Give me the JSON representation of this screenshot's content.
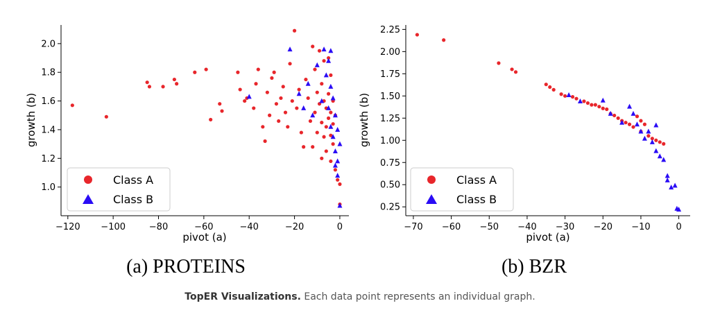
{
  "caption": {
    "bold": "TopER Visualizations.",
    "rest": " Each data point represents an individual graph."
  },
  "colors": {
    "class_a": "#e8262b",
    "class_b": "#2a0cf5"
  },
  "chart_data": [
    {
      "type": "scatter",
      "subcaption": "(a) PROTEINS",
      "xlabel": "pivot (a)",
      "ylabel": "growth (b)",
      "xlim": [
        -123,
        4
      ],
      "ylim": [
        0.8,
        2.13
      ],
      "xticks": [
        -120,
        -100,
        -80,
        -60,
        -40,
        -20,
        0
      ],
      "yticks": [
        1.0,
        1.2,
        1.4,
        1.6,
        1.8,
        2.0
      ],
      "ytick_labels": [
        "1.0",
        "1.2",
        "1.4",
        "1.6",
        "1.8",
        "2.0"
      ],
      "legend": {
        "position": "lower-left",
        "entries": [
          "Class A",
          "Class B"
        ]
      },
      "series": [
        {
          "name": "Class A",
          "marker": "circle",
          "points": [
            [
              -118,
              1.57
            ],
            [
              -103,
              1.49
            ],
            [
              -85,
              1.73
            ],
            [
              -84,
              1.7
            ],
            [
              -78,
              1.7
            ],
            [
              -73,
              1.75
            ],
            [
              -72,
              1.72
            ],
            [
              -64,
              1.8
            ],
            [
              -59,
              1.82
            ],
            [
              -57,
              1.47
            ],
            [
              -53,
              1.58
            ],
            [
              -52,
              1.53
            ],
            [
              -45,
              1.8
            ],
            [
              -44,
              1.68
            ],
            [
              -42,
              1.6
            ],
            [
              -41,
              1.62
            ],
            [
              -38,
              1.55
            ],
            [
              -37,
              1.72
            ],
            [
              -36,
              1.82
            ],
            [
              -34,
              1.42
            ],
            [
              -33,
              1.32
            ],
            [
              -32,
              1.66
            ],
            [
              -31,
              1.5
            ],
            [
              -30,
              1.76
            ],
            [
              -29,
              1.8
            ],
            [
              -28,
              1.58
            ],
            [
              -27,
              1.46
            ],
            [
              -26,
              1.62
            ],
            [
              -25,
              1.7
            ],
            [
              -24,
              1.52
            ],
            [
              -23,
              1.42
            ],
            [
              -22,
              1.86
            ],
            [
              -21,
              1.6
            ],
            [
              -20,
              2.09
            ],
            [
              -19,
              1.55
            ],
            [
              -18,
              1.68
            ],
            [
              -17,
              1.38
            ],
            [
              -16,
              1.28
            ],
            [
              -15,
              1.75
            ],
            [
              -14,
              1.62
            ],
            [
              -13,
              1.46
            ],
            [
              -12,
              1.98
            ],
            [
              -12,
              1.28
            ],
            [
              -11,
              1.82
            ],
            [
              -11,
              1.52
            ],
            [
              -10,
              1.66
            ],
            [
              -10,
              1.38
            ],
            [
              -9,
              1.95
            ],
            [
              -9,
              1.58
            ],
            [
              -8,
              1.72
            ],
            [
              -8,
              1.45
            ],
            [
              -8,
              1.2
            ],
            [
              -7,
              1.88
            ],
            [
              -7,
              1.6
            ],
            [
              -7,
              1.35
            ],
            [
              -6,
              1.55
            ],
            [
              -6,
              1.42
            ],
            [
              -6,
              1.25
            ],
            [
              -5,
              1.9
            ],
            [
              -5,
              1.65
            ],
            [
              -5,
              1.48
            ],
            [
              -4,
              1.78
            ],
            [
              -4,
              1.52
            ],
            [
              -4,
              1.36
            ],
            [
              -4,
              1.18
            ],
            [
              -3,
              1.6
            ],
            [
              -3,
              1.44
            ],
            [
              -3,
              1.3
            ],
            [
              -2,
              1.5
            ],
            [
              -2,
              1.12
            ],
            [
              -1,
              1.05
            ],
            [
              0,
              1.02
            ],
            [
              0,
              0.88
            ]
          ]
        },
        {
          "name": "Class B",
          "marker": "triangle",
          "points": [
            [
              -40,
              1.63
            ],
            [
              -22,
              1.96
            ],
            [
              -18,
              1.65
            ],
            [
              -16,
              1.55
            ],
            [
              -14,
              1.72
            ],
            [
              -12,
              1.5
            ],
            [
              -10,
              1.85
            ],
            [
              -8,
              1.6
            ],
            [
              -7,
              1.96
            ],
            [
              -6,
              1.78
            ],
            [
              -5,
              1.88
            ],
            [
              -5,
              1.55
            ],
            [
              -4,
              1.95
            ],
            [
              -4,
              1.7
            ],
            [
              -4,
              1.42
            ],
            [
              -3,
              1.62
            ],
            [
              -3,
              1.35
            ],
            [
              -2,
              1.5
            ],
            [
              -2,
              1.25
            ],
            [
              -2,
              1.15
            ],
            [
              -1,
              1.4
            ],
            [
              -1,
              1.18
            ],
            [
              -1,
              1.08
            ],
            [
              0,
              1.3
            ],
            [
              0,
              0.87
            ]
          ]
        }
      ]
    },
    {
      "type": "scatter",
      "subcaption": "(b) BZR",
      "xlabel": "pivot (a)",
      "ylabel": "growth (b)",
      "xlim": [
        -72,
        3
      ],
      "ylim": [
        0.15,
        2.3
      ],
      "xticks": [
        -70,
        -60,
        -50,
        -40,
        -30,
        -20,
        -10,
        0
      ],
      "yticks": [
        0.25,
        0.5,
        0.75,
        1.0,
        1.25,
        1.5,
        1.75,
        2.0,
        2.25
      ],
      "ytick_labels": [
        "0.25",
        "0.50",
        "0.75",
        "1.00",
        "1.25",
        "1.50",
        "1.75",
        "2.00",
        "2.25"
      ],
      "legend": {
        "position": "lower-left",
        "entries": [
          "Class A",
          "Class B"
        ]
      },
      "series": [
        {
          "name": "Class A",
          "marker": "circle",
          "points": [
            [
              -69,
              2.19
            ],
            [
              -62,
              2.13
            ],
            [
              -47.5,
              1.87
            ],
            [
              -44,
              1.8
            ],
            [
              -43,
              1.77
            ],
            [
              -35,
              1.63
            ],
            [
              -34,
              1.6
            ],
            [
              -33,
              1.57
            ],
            [
              -31,
              1.52
            ],
            [
              -30,
              1.5
            ],
            [
              -28,
              1.49
            ],
            [
              -27,
              1.47
            ],
            [
              -25,
              1.44
            ],
            [
              -24,
              1.42
            ],
            [
              -23,
              1.4
            ],
            [
              -22,
              1.4
            ],
            [
              -21,
              1.38
            ],
            [
              -20,
              1.36
            ],
            [
              -19,
              1.35
            ],
            [
              -18,
              1.3
            ],
            [
              -17,
              1.28
            ],
            [
              -16,
              1.25
            ],
            [
              -15,
              1.22
            ],
            [
              -14,
              1.2
            ],
            [
              -13,
              1.18
            ],
            [
              -12,
              1.15
            ],
            [
              -11,
              1.27
            ],
            [
              -10,
              1.22
            ],
            [
              -10,
              1.1
            ],
            [
              -9,
              1.18
            ],
            [
              -8,
              1.05
            ],
            [
              -7,
              1.02
            ],
            [
              -6,
              1.0
            ],
            [
              -5,
              0.98
            ],
            [
              -4,
              0.96
            ]
          ]
        },
        {
          "name": "Class B",
          "marker": "triangle",
          "points": [
            [
              -29,
              1.51
            ],
            [
              -26,
              1.44
            ],
            [
              -20,
              1.45
            ],
            [
              -18,
              1.3
            ],
            [
              -15,
              1.2
            ],
            [
              -13,
              1.38
            ],
            [
              -12,
              1.3
            ],
            [
              -11,
              1.18
            ],
            [
              -10,
              1.1
            ],
            [
              -9,
              1.02
            ],
            [
              -8,
              1.1
            ],
            [
              -7,
              0.98
            ],
            [
              -6,
              1.17
            ],
            [
              -6,
              0.88
            ],
            [
              -5,
              0.82
            ],
            [
              -4,
              0.78
            ],
            [
              -3,
              0.6
            ],
            [
              -3,
              0.55
            ],
            [
              -2,
              0.47
            ],
            [
              -1,
              0.49
            ],
            [
              -0.5,
              0.23
            ],
            [
              0,
              0.22
            ]
          ]
        }
      ]
    }
  ]
}
